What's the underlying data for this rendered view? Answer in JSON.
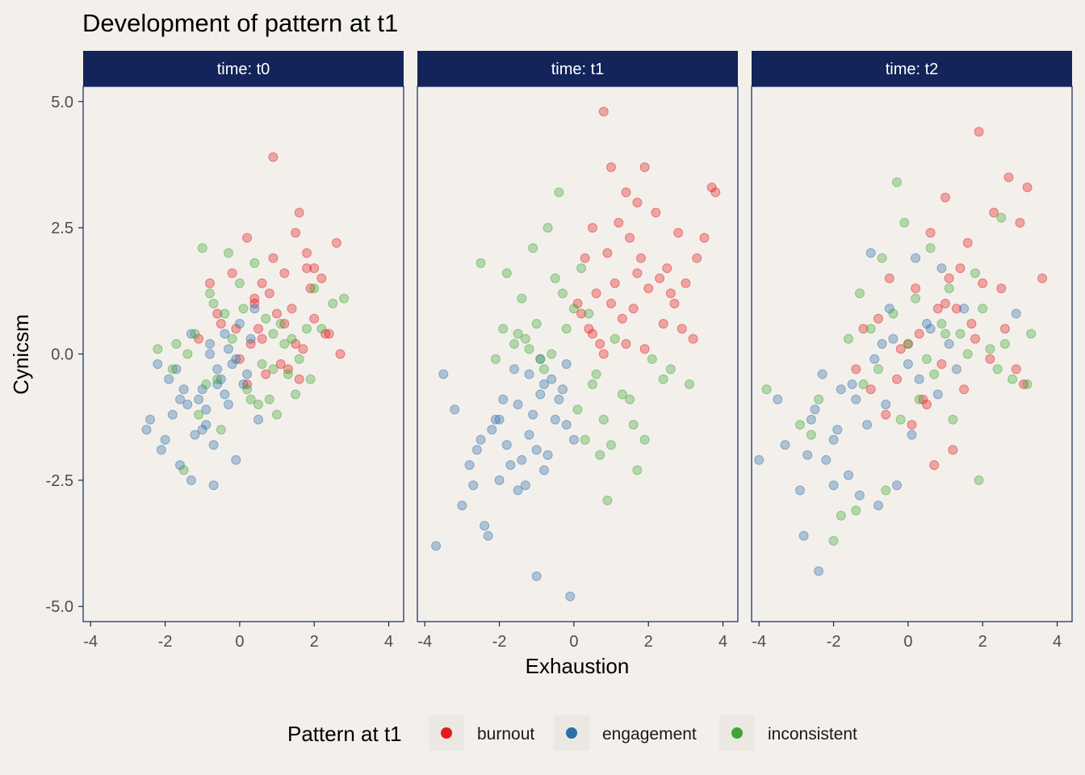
{
  "chart_data": {
    "type": "scatter",
    "title": "Development of pattern at t1",
    "xlabel": "Exhaustion",
    "ylabel": "Cynicsm",
    "xlim": [
      -4.2,
      4.4
    ],
    "ylim": [
      -5.3,
      5.3
    ],
    "x_ticks": [
      -4,
      -2,
      0,
      2,
      4
    ],
    "x_tick_labels": [
      "-4",
      "-2",
      "0",
      "2",
      "4"
    ],
    "y_ticks": [
      5,
      2.5,
      0,
      -2.5,
      -5
    ],
    "y_tick_labels": [
      "5.0",
      "2.5",
      "0.0",
      "-2.5",
      "-5.0"
    ],
    "grid": false,
    "facet_strip_color": "#13245a",
    "legend": {
      "title": "Pattern at t1",
      "position": "bottom",
      "entries": [
        {
          "label": "burnout",
          "color": "#e31a1c"
        },
        {
          "label": "engagement",
          "color": "#2f6ea8"
        },
        {
          "label": "inconsistent",
          "color": "#3fa535"
        }
      ]
    },
    "panels": [
      {
        "label": "time: t0",
        "series": [
          {
            "name": "burnout",
            "x": [
              0.9,
              1.6,
              0.2,
              1.5,
              2.6,
              2.2,
              1.8,
              1.2,
              0.8,
              0.4,
              1.9,
              1.0,
              0.5,
              2.0,
              1.4,
              -0.2,
              0.6,
              1.7,
              2.3,
              0.3,
              -0.5,
              1.1,
              0.7,
              1.3,
              2.7,
              -0.1,
              0.0,
              1.6,
              0.9,
              -0.8,
              1.8,
              2.0,
              0.4,
              1.2,
              -1.1,
              0.2,
              1.5,
              0.6,
              -0.6,
              2.4
            ],
            "y": [
              3.9,
              2.8,
              2.3,
              2.4,
              2.2,
              1.5,
              1.7,
              1.6,
              1.2,
              1.0,
              1.3,
              0.8,
              0.5,
              0.7,
              0.9,
              1.6,
              0.3,
              0.1,
              0.4,
              0.2,
              0.6,
              -0.2,
              -0.4,
              -0.3,
              0.0,
              0.5,
              -0.1,
              -0.5,
              1.9,
              1.4,
              2.0,
              1.7,
              1.1,
              0.6,
              0.3,
              -0.6,
              0.2,
              1.4,
              0.8,
              0.4
            ]
          },
          {
            "name": "engagement",
            "x": [
              -2.4,
              -2.0,
              -1.6,
              -1.3,
              -1.0,
              -0.7,
              -0.4,
              -0.1,
              0.2,
              -1.8,
              -1.1,
              -0.6,
              -0.3,
              0.1,
              -2.2,
              -1.5,
              -0.9,
              -0.5,
              0.0,
              -1.2,
              -0.8,
              -2.5,
              -1.4,
              -0.2,
              0.3,
              -0.7,
              -1.9,
              -1.0,
              -0.4,
              0.5,
              -1.6,
              -2.1,
              -0.9,
              -0.1,
              -1.3,
              -0.6,
              0.4,
              -1.7,
              -0.3,
              -0.8
            ],
            "y": [
              -1.3,
              -1.7,
              -2.2,
              -2.5,
              -1.5,
              -2.6,
              -0.8,
              -2.1,
              -0.4,
              -1.2,
              -0.9,
              -0.3,
              0.1,
              -0.6,
              -0.2,
              -0.7,
              -1.1,
              -0.5,
              0.6,
              -1.6,
              0.2,
              -1.5,
              -1.0,
              -0.2,
              0.3,
              -1.8,
              -0.5,
              -0.7,
              0.4,
              -1.3,
              -0.9,
              -1.9,
              -1.4,
              -0.1,
              0.4,
              -0.6,
              0.9,
              -0.3,
              -1.0,
              0.0
            ]
          },
          {
            "name": "inconsistent",
            "x": [
              -1.0,
              -0.3,
              0.4,
              1.2,
              1.8,
              2.8,
              -2.2,
              -1.5,
              -0.8,
              0.1,
              0.9,
              1.5,
              2.0,
              -1.2,
              -0.5,
              0.6,
              1.0,
              -1.8,
              -0.2,
              0.3,
              1.3,
              2.2,
              -0.9,
              0.0,
              0.7,
              1.6,
              -1.4,
              0.5,
              -0.6,
              1.1,
              2.5,
              -1.7,
              0.2,
              0.8,
              -0.4,
              1.4,
              -1.1,
              1.9,
              -0.7,
              0.9
            ],
            "y": [
              2.1,
              2.0,
              1.8,
              0.2,
              0.5,
              1.1,
              0.1,
              -2.3,
              1.2,
              0.9,
              0.4,
              -0.8,
              1.3,
              0.4,
              -1.5,
              -0.2,
              -1.2,
              -0.3,
              0.3,
              -0.9,
              -0.4,
              0.5,
              -0.6,
              1.4,
              0.7,
              -0.1,
              0.0,
              -1.0,
              -0.5,
              0.6,
              1.0,
              0.2,
              -0.7,
              -0.9,
              0.8,
              0.3,
              -1.2,
              -0.5,
              1.0,
              -0.3
            ]
          }
        ]
      },
      {
        "label": "time: t1",
        "series": [
          {
            "name": "burnout",
            "x": [
              0.8,
              1.0,
              1.9,
              3.7,
              3.8,
              1.4,
              2.2,
              1.7,
              3.5,
              0.5,
              1.2,
              2.8,
              0.3,
              0.9,
              1.5,
              2.5,
              3.0,
              0.6,
              1.8,
              2.3,
              0.1,
              1.1,
              2.0,
              0.4,
              1.6,
              2.6,
              3.3,
              0.7,
              1.3,
              2.9,
              0.2,
              1.9,
              2.4,
              3.2,
              1.0,
              1.4,
              0.5,
              2.7,
              1.7,
              0.8
            ],
            "y": [
              4.8,
              3.7,
              3.7,
              3.3,
              3.2,
              3.2,
              2.8,
              3.0,
              2.3,
              2.5,
              2.6,
              2.4,
              1.9,
              2.0,
              2.3,
              1.7,
              1.4,
              1.2,
              1.9,
              1.5,
              1.0,
              1.4,
              1.3,
              0.5,
              0.9,
              1.2,
              1.9,
              0.2,
              0.7,
              0.5,
              0.8,
              0.1,
              0.6,
              0.3,
              1.0,
              0.2,
              0.4,
              1.0,
              1.6,
              0.0
            ]
          },
          {
            "name": "engagement",
            "x": [
              -3.7,
              -3.0,
              -2.4,
              -2.3,
              -2.0,
              -1.7,
              -1.3,
              -1.0,
              -0.7,
              -0.1,
              -3.5,
              -2.8,
              -2.6,
              -2.1,
              -1.9,
              -1.5,
              -1.2,
              -0.9,
              -0.5,
              0.0,
              -3.2,
              -2.2,
              -1.8,
              -1.4,
              -1.1,
              -0.8,
              -0.4,
              -0.2,
              -2.5,
              -1.6,
              -0.9,
              -0.3,
              -2.0,
              -1.2,
              -0.6,
              -2.7,
              -1.5,
              -1.0,
              -0.2,
              -0.8
            ],
            "y": [
              -3.8,
              -3.0,
              -3.4,
              -3.6,
              -2.5,
              -2.2,
              -2.6,
              -4.4,
              -2.0,
              -4.8,
              -0.4,
              -2.2,
              -1.9,
              -1.3,
              -0.9,
              -1.0,
              -0.4,
              -0.8,
              -1.3,
              -1.7,
              -1.1,
              -1.5,
              -1.8,
              -2.1,
              -1.2,
              -0.6,
              -0.9,
              -1.4,
              -1.7,
              -0.3,
              -0.1,
              -0.7,
              -1.3,
              -1.6,
              -0.5,
              -2.6,
              -2.7,
              -1.9,
              -0.2,
              -2.3
            ]
          },
          {
            "name": "inconsistent",
            "x": [
              -0.4,
              -0.7,
              -1.1,
              -2.5,
              -1.8,
              -0.5,
              0.2,
              -1.4,
              -0.3,
              0.0,
              -1.9,
              -1.6,
              -1.0,
              0.4,
              1.1,
              2.6,
              3.1,
              1.5,
              0.8,
              -0.8,
              0.3,
              1.0,
              1.9,
              -2.1,
              -1.2,
              -0.2,
              0.6,
              1.3,
              2.4,
              -0.9,
              0.1,
              0.7,
              1.7,
              -1.5,
              -0.6,
              0.5,
              1.6,
              0.9,
              2.1,
              -1.3
            ],
            "y": [
              3.2,
              2.5,
              2.1,
              1.8,
              1.6,
              1.5,
              1.7,
              1.1,
              1.2,
              0.9,
              0.5,
              0.2,
              0.6,
              0.8,
              0.3,
              -0.3,
              -0.6,
              -0.9,
              -1.3,
              -0.3,
              -1.7,
              -1.8,
              -1.7,
              -0.1,
              0.1,
              0.5,
              -0.4,
              -0.8,
              -0.5,
              -0.1,
              -1.1,
              -2.0,
              -2.3,
              0.4,
              0.0,
              -0.6,
              -1.4,
              -2.9,
              -0.1,
              0.3
            ]
          }
        ]
      },
      {
        "label": "time: t2",
        "series": [
          {
            "name": "burnout",
            "x": [
              1.9,
              2.7,
              1.0,
              3.2,
              3.0,
              1.6,
              2.3,
              0.6,
              1.4,
              3.6,
              2.5,
              0.2,
              1.1,
              2.0,
              -0.5,
              0.8,
              1.7,
              -0.8,
              0.3,
              1.3,
              2.9,
              -1.2,
              0.0,
              0.9,
              2.2,
              -0.3,
              0.5,
              1.5,
              3.1,
              -1.0,
              0.4,
              1.8,
              -0.6,
              1.2,
              0.1,
              2.6,
              -1.4,
              0.7,
              1.0,
              -0.2
            ],
            "y": [
              4.4,
              3.5,
              3.1,
              3.3,
              2.6,
              2.2,
              2.8,
              2.4,
              1.7,
              1.5,
              1.3,
              1.3,
              1.5,
              1.4,
              1.5,
              0.9,
              0.6,
              0.7,
              0.4,
              0.9,
              -0.3,
              0.5,
              0.2,
              -0.2,
              -0.1,
              -0.5,
              -1.0,
              -0.7,
              -0.6,
              -0.7,
              -0.9,
              0.3,
              -1.2,
              -1.9,
              -1.4,
              0.5,
              -0.3,
              -2.2,
              1.0,
              0.1
            ]
          },
          {
            "name": "engagement",
            "x": [
              -4.0,
              -3.3,
              -2.8,
              -2.4,
              -2.0,
              -1.6,
              -1.3,
              -0.8,
              -0.3,
              0.1,
              -3.5,
              -2.6,
              -2.2,
              -1.8,
              -1.1,
              -0.6,
              0.3,
              0.8,
              1.3,
              -2.9,
              -2.5,
              -1.9,
              -1.4,
              -0.9,
              -0.4,
              0.5,
              1.1,
              -2.3,
              -1.5,
              -1.0,
              -0.5,
              0.2,
              0.9,
              1.5,
              -2.7,
              -2.0,
              -0.7,
              0.0,
              0.6,
              2.9
            ],
            "y": [
              -2.1,
              -1.8,
              -3.6,
              -4.3,
              -2.6,
              -2.4,
              -2.8,
              -3.0,
              -2.6,
              -1.6,
              -0.9,
              -1.3,
              -2.1,
              -0.7,
              -1.4,
              -1.0,
              -0.5,
              -0.8,
              -0.3,
              -2.7,
              -1.1,
              -1.5,
              -0.9,
              -0.1,
              0.3,
              0.6,
              0.2,
              -0.4,
              -0.6,
              2.0,
              0.9,
              1.9,
              1.7,
              0.9,
              -2.0,
              -1.7,
              0.2,
              -0.2,
              0.5,
              0.8
            ]
          },
          {
            "name": "inconsistent",
            "x": [
              -2.0,
              -1.8,
              -1.4,
              -0.6,
              -0.2,
              0.3,
              0.7,
              1.2,
              1.9,
              2.4,
              3.2,
              -2.9,
              -2.4,
              -1.2,
              -0.8,
              0.0,
              0.5,
              1.0,
              1.6,
              2.2,
              2.8,
              -1.6,
              -1.0,
              -0.4,
              0.2,
              0.9,
              1.4,
              2.0,
              2.6,
              3.3,
              -3.8,
              -2.6,
              -1.3,
              -0.7,
              -0.1,
              0.6,
              1.1,
              1.8,
              2.5,
              -0.3
            ],
            "y": [
              -3.7,
              -3.2,
              -3.1,
              -2.7,
              -1.3,
              -0.9,
              -0.4,
              -1.3,
              -2.5,
              -0.3,
              -0.6,
              -1.4,
              -0.9,
              -0.6,
              -0.3,
              0.2,
              -0.1,
              0.4,
              0.0,
              0.1,
              -0.5,
              0.3,
              0.5,
              0.8,
              1.1,
              0.6,
              0.4,
              0.9,
              0.2,
              0.4,
              -0.7,
              -1.6,
              1.2,
              1.9,
              2.6,
              2.1,
              1.3,
              1.6,
              2.7,
              3.4
            ]
          }
        ]
      }
    ]
  }
}
